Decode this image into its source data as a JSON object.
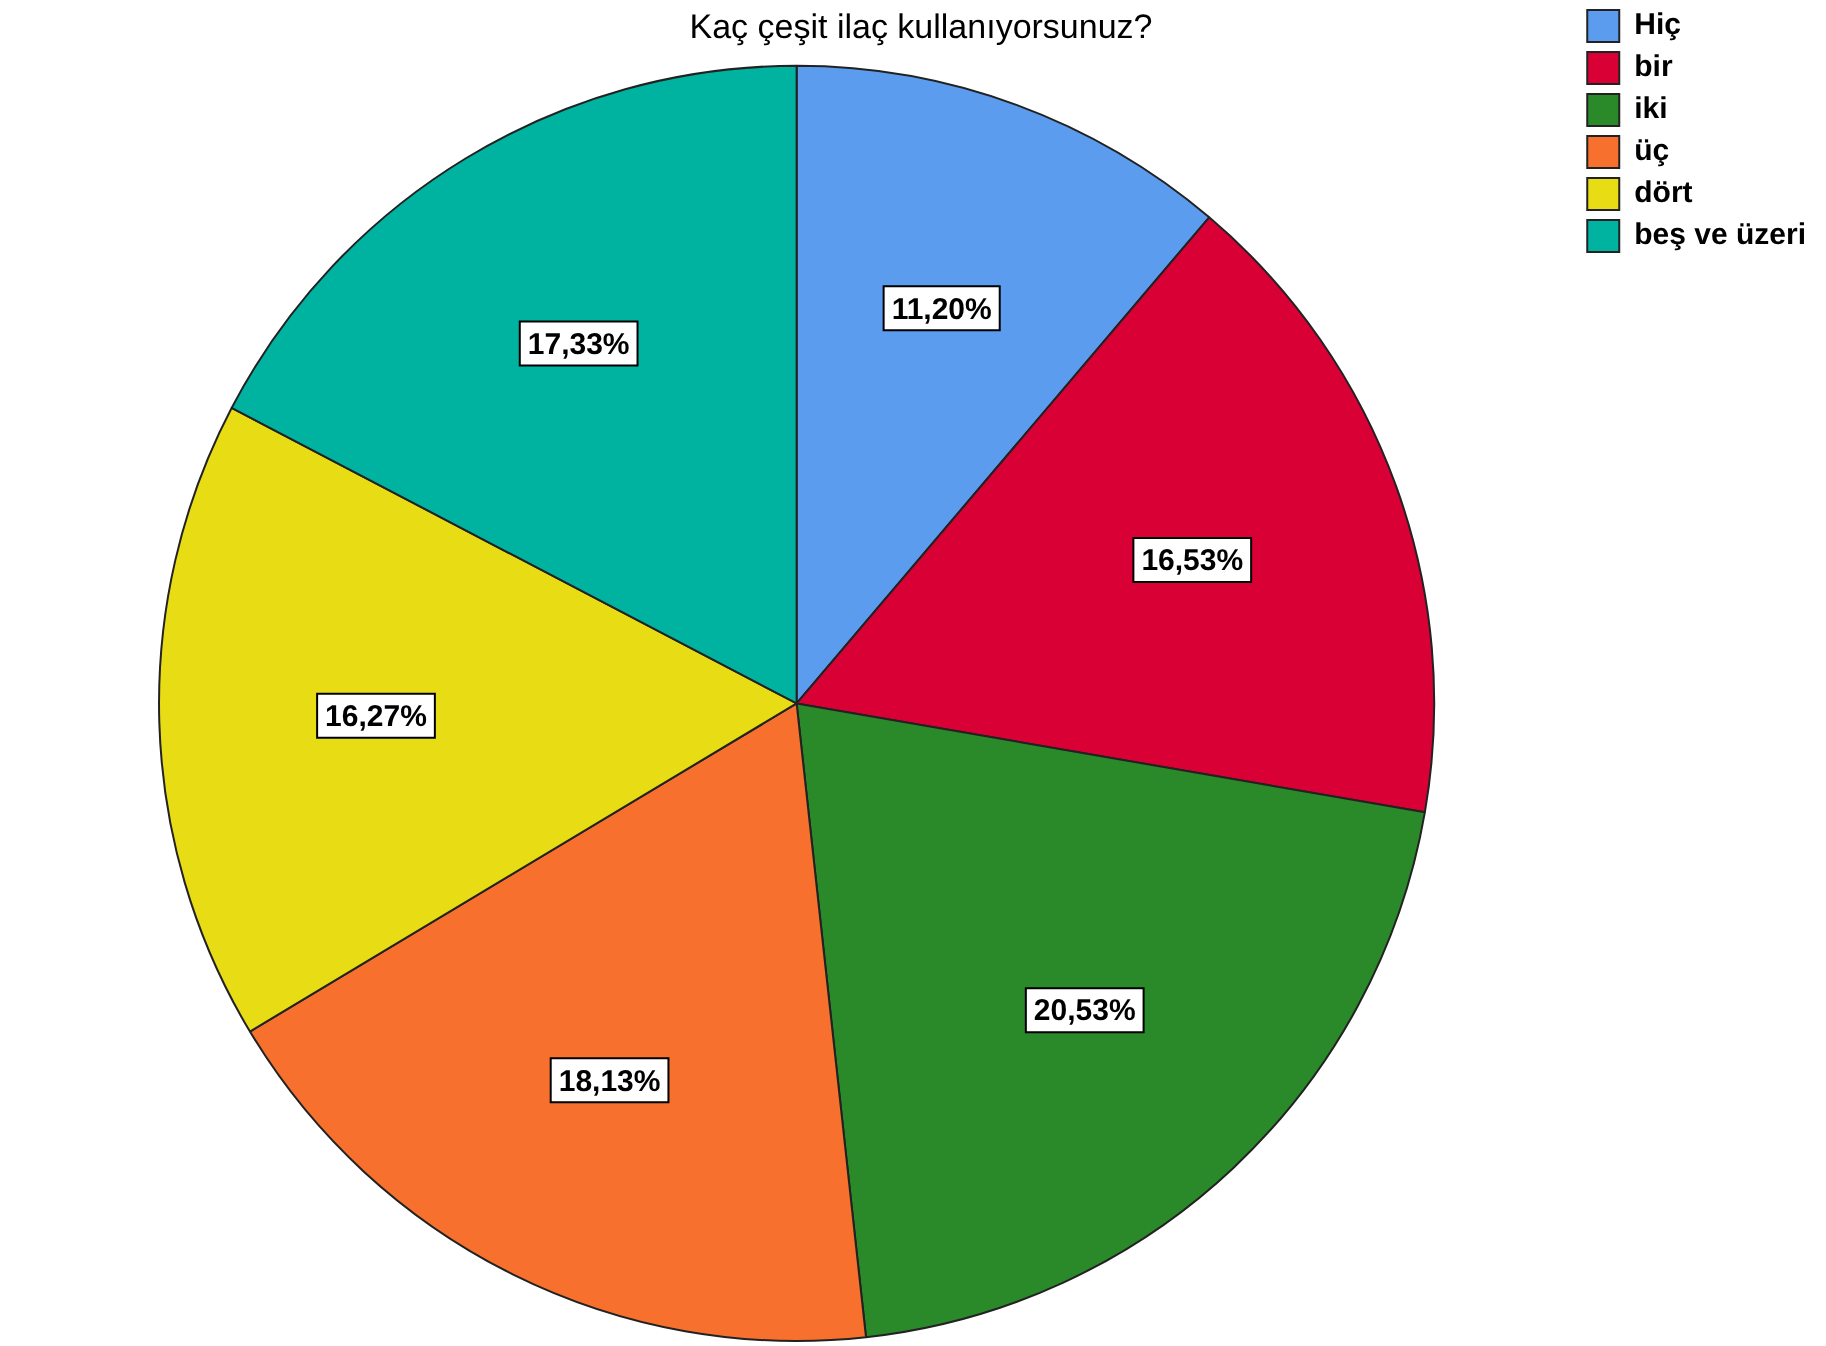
{
  "chart_data": {
    "type": "pie",
    "title": "Kaç çeşit ilaç kullanıyorsunuz?",
    "categories": [
      "Hiç",
      "bir",
      "iki",
      "üç",
      "dört",
      "beş ve üzeri"
    ],
    "values": [
      11.2,
      16.53,
      20.53,
      18.13,
      16.27,
      17.33
    ],
    "colors": [
      "#5b9cef",
      "#d90036",
      "#2a8a2a",
      "#f7702e",
      "#e8dc14",
      "#00b3a1"
    ],
    "value_labels": [
      "11,20%",
      "16,53%",
      "20,53%",
      "18,13%",
      "16,27%",
      "17,33%"
    ],
    "legend": "top right"
  }
}
